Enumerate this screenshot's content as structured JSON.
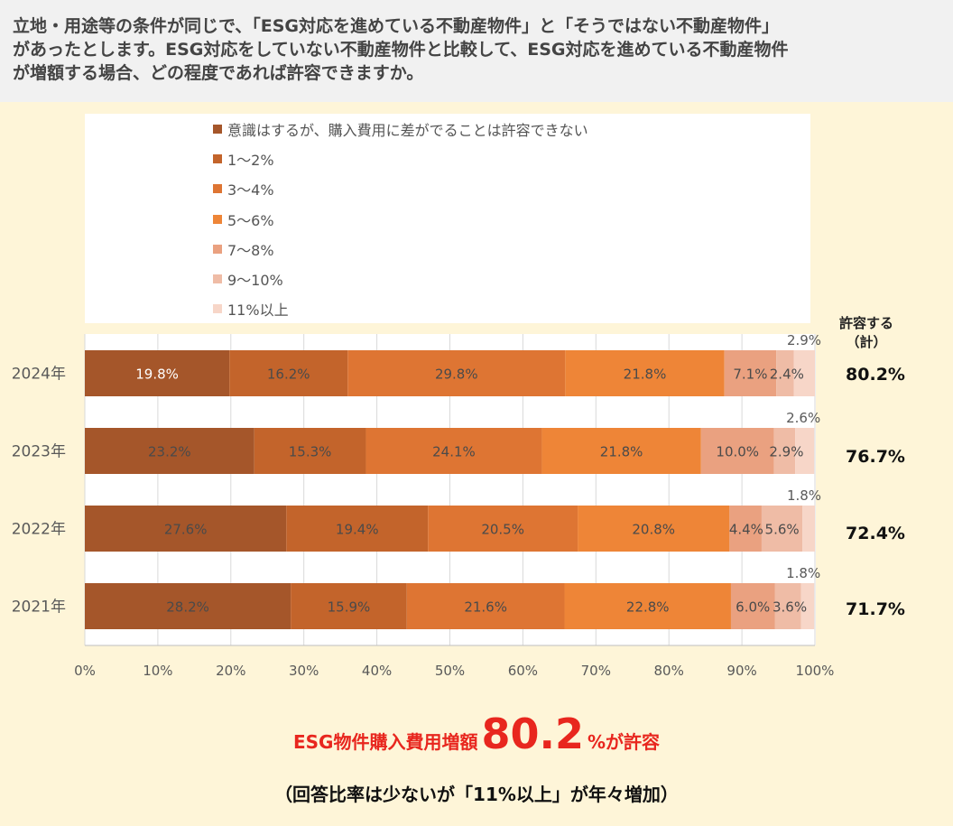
{
  "header": {
    "text": "立地・用途等の条件が同じで、「ESG対応を進めている不動産物件」と「そうではない不動産物件」\nがあったとします。ESG対応をしていない不動産物件と比較して、ESG対応を進めている不動産物件\nが増額する場合、どの程度であれば許容できますか。"
  },
  "totals": {
    "header": "許容する\n（計）",
    "values": [
      "80.2%",
      "76.7%",
      "72.4%",
      "71.7%"
    ]
  },
  "headline": {
    "prefix": "ESG物件購入費用増額",
    "value": "80.2",
    "suffix": "%が許容"
  },
  "subline": "（回答比率は少ないが「11%以上」が年々増加）",
  "chart_data": {
    "type": "bar",
    "orientation": "horizontal",
    "stacked": true,
    "categories": [
      "2024年",
      "2023年",
      "2022年",
      "2021年"
    ],
    "series": [
      {
        "name": "意識はするが、購入費用に差がでることは許容できない",
        "color": "#a5562a",
        "values": [
          19.8,
          23.2,
          27.6,
          28.2
        ],
        "labels": [
          "19.8%",
          "23.2%",
          "27.6%",
          "28.2%"
        ]
      },
      {
        "name": "1〜2%",
        "color": "#c3642b",
        "values": [
          16.2,
          15.3,
          19.4,
          15.9
        ],
        "labels": [
          "16.2%",
          "15.3%",
          "19.4%",
          "15.9%"
        ]
      },
      {
        "name": "3〜4%",
        "color": "#de7533",
        "values": [
          29.8,
          24.1,
          20.5,
          21.6
        ],
        "labels": [
          "29.8%",
          "24.1%",
          "20.5%",
          "21.6%"
        ]
      },
      {
        "name": "5〜6%",
        "color": "#ee8537",
        "values": [
          21.8,
          21.8,
          20.8,
          22.8
        ],
        "labels": [
          "21.8%",
          "21.8%",
          "20.8%",
          "22.8%"
        ]
      },
      {
        "name": "7〜8%",
        "color": "#eaa180",
        "values": [
          7.1,
          10.0,
          4.4,
          6.0
        ],
        "labels": [
          "7.1%",
          "10.0%",
          "4.4%",
          "6.0%"
        ]
      },
      {
        "name": "9〜10%",
        "color": "#efbca6",
        "values": [
          2.4,
          2.9,
          5.6,
          3.6
        ],
        "labels": [
          "2.4%",
          "2.9%",
          "5.6%",
          "3.6%"
        ]
      },
      {
        "name": "11%以上",
        "color": "#f7d6c8",
        "values": [
          2.9,
          2.6,
          1.8,
          1.8
        ],
        "labels": [
          "2.9%",
          "2.6%",
          "1.8%",
          "1.8%"
        ]
      }
    ],
    "xlim": [
      0,
      100
    ],
    "xticks": [
      "0%",
      "10%",
      "20%",
      "30%",
      "40%",
      "50%",
      "60%",
      "70%",
      "80%",
      "90%",
      "100%"
    ],
    "legend": "top",
    "xgrid": true
  }
}
